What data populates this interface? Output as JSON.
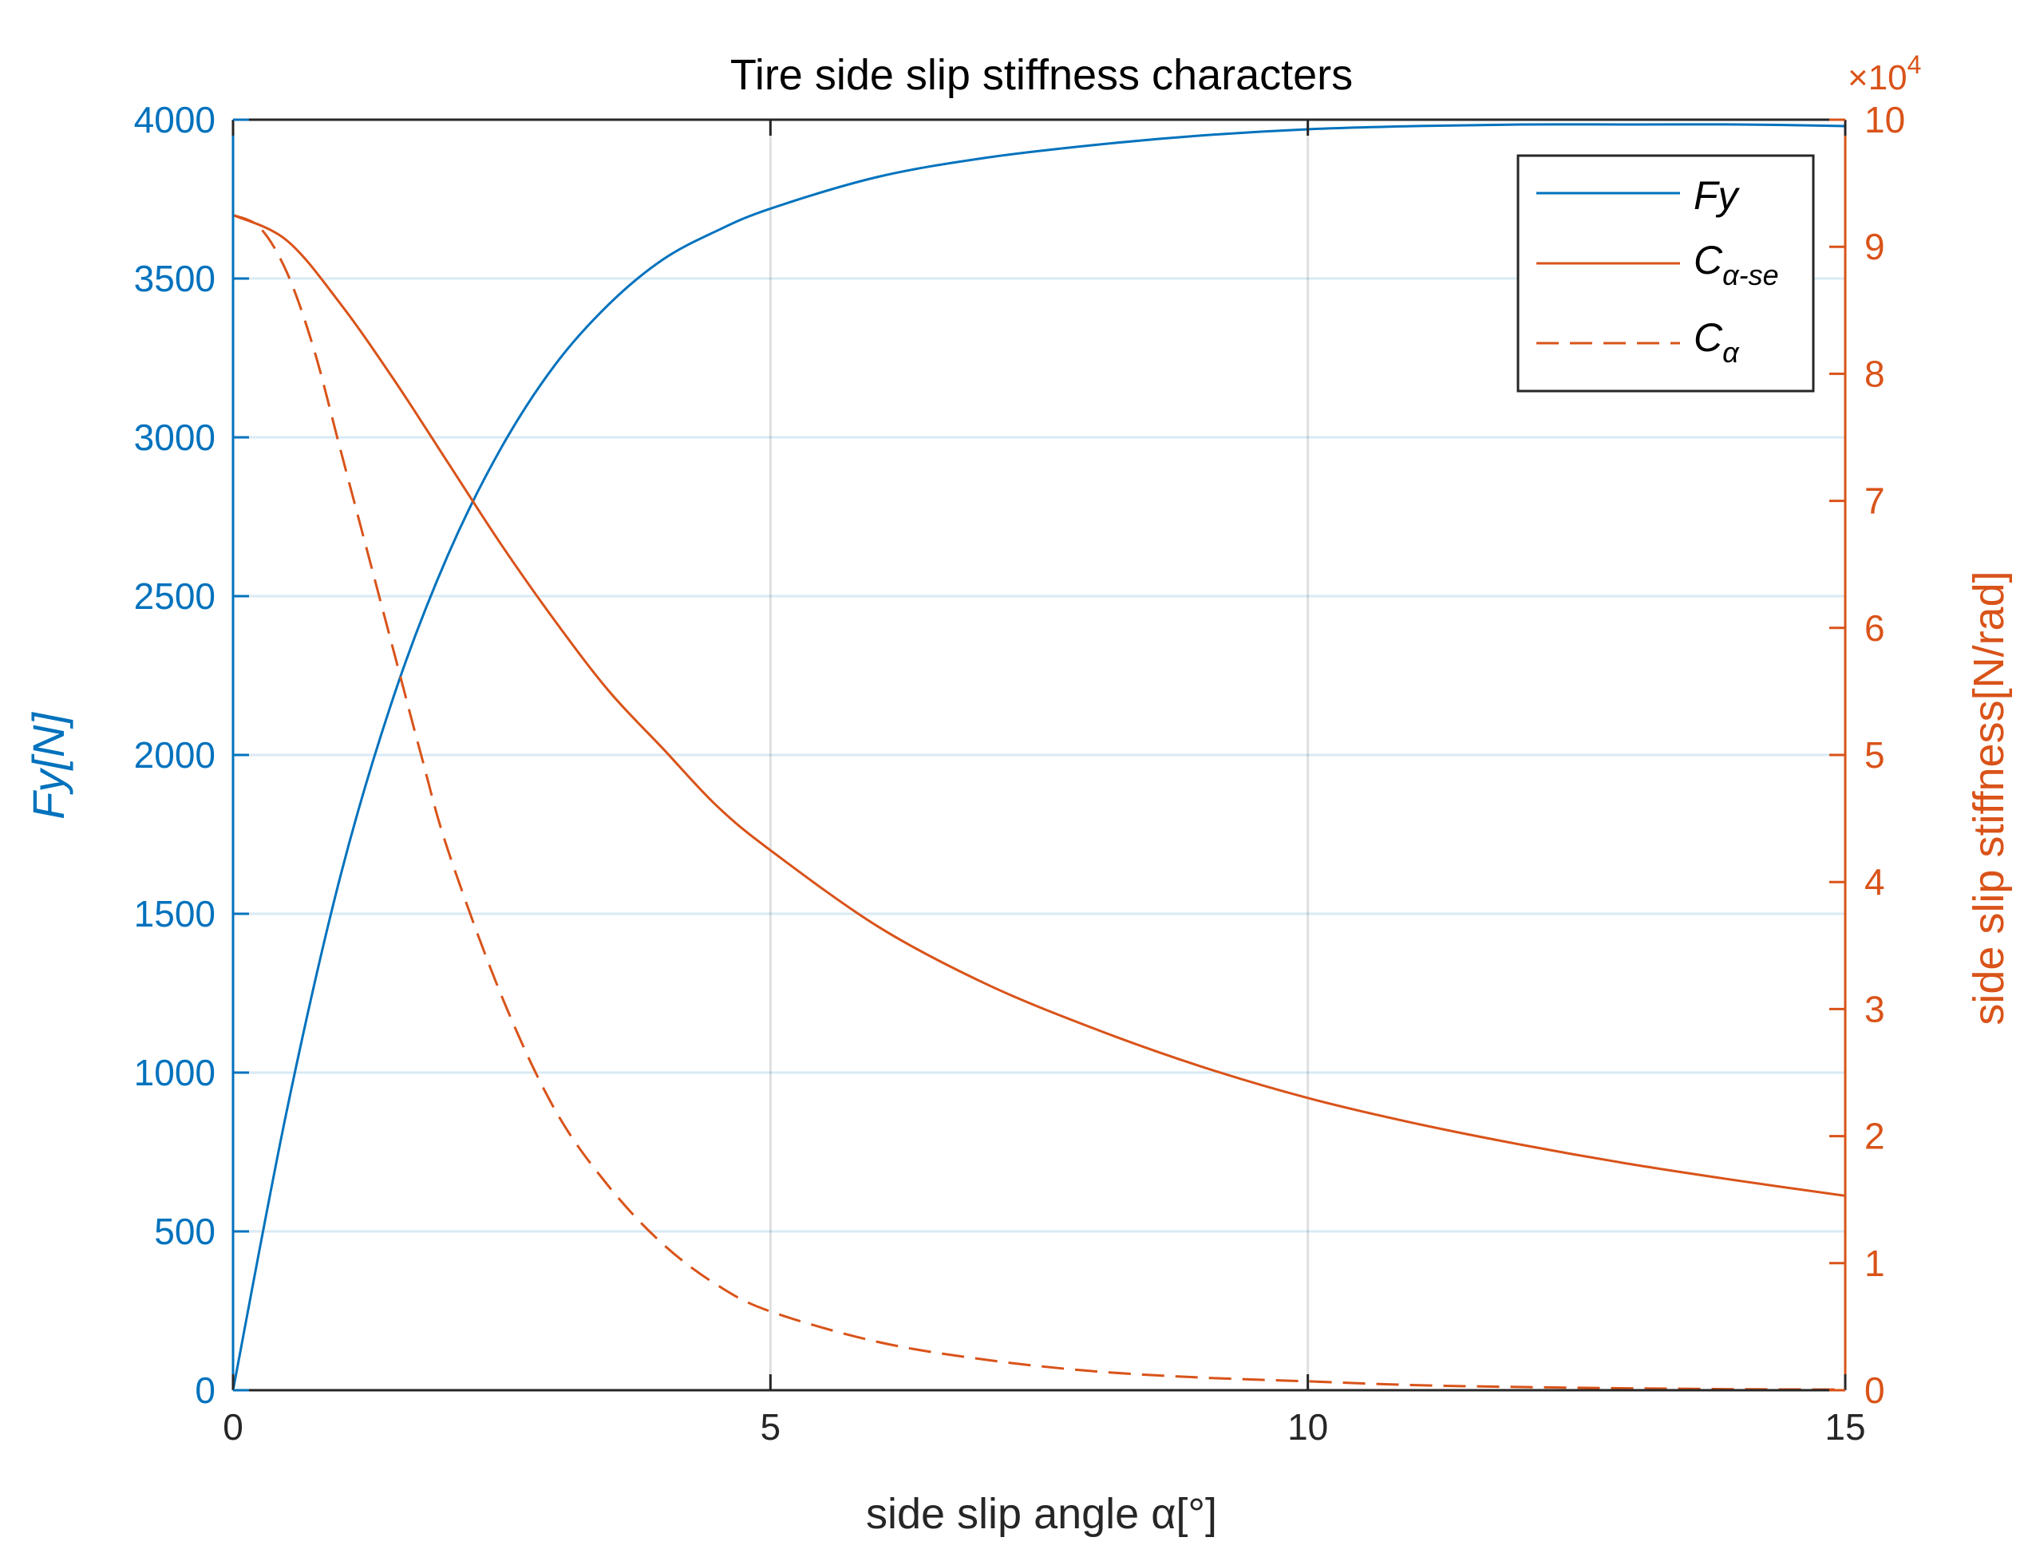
{
  "chart_data": {
    "type": "line",
    "title": "Tire side slip stiffness characters",
    "xlabel": "side slip angle α[°]",
    "ylabel_left": "Fy[N]",
    "ylabel_right": "side slip stiffness[N/rad]",
    "right_exponent_base": "×10",
    "right_exponent_power": "4",
    "xlim": [
      0,
      15
    ],
    "ylim_left": [
      0,
      4000
    ],
    "ylim_right": [
      0,
      100000
    ],
    "x_ticks": [
      "0",
      "5",
      "10",
      "15"
    ],
    "y_left_ticks": [
      "0",
      "500",
      "1000",
      "1500",
      "2000",
      "2500",
      "3000",
      "3500",
      "4000"
    ],
    "y_right_ticks": [
      "0",
      "1",
      "2",
      "3",
      "4",
      "5",
      "6",
      "7",
      "8",
      "9",
      "10"
    ],
    "grid": true,
    "legend_position": "top-right",
    "colors": {
      "left": "#0072BD",
      "right": "#D95319",
      "axis": "#262626"
    },
    "legend": [
      {
        "main": "Fy",
        "sub": ""
      },
      {
        "main": "C",
        "sub": "α-se"
      },
      {
        "main": "C",
        "sub": "α"
      }
    ],
    "series": [
      {
        "name": "Fy",
        "axis": "left",
        "color": "#0072BD",
        "dash": "solid",
        "x": [
          0,
          0.5,
          1,
          1.5,
          2,
          2.5,
          3,
          3.5,
          4,
          4.5,
          5,
          6,
          7,
          8,
          9,
          10,
          11,
          12,
          13,
          14,
          15
        ],
        "y": [
          0,
          880,
          1620,
          2190,
          2630,
          2970,
          3230,
          3420,
          3560,
          3650,
          3720,
          3820,
          3880,
          3920,
          3950,
          3970,
          3980,
          3985,
          3985,
          3985,
          3980
        ]
      },
      {
        "name": "Cα-se",
        "axis": "right",
        "color": "#D95319",
        "dash": "solid",
        "x": [
          0,
          0.5,
          1,
          1.5,
          2,
          2.5,
          3,
          3.5,
          4,
          4.5,
          5,
          6,
          7,
          8,
          9,
          10,
          11,
          12,
          13,
          14,
          15
        ],
        "y": [
          92500,
          90500,
          85500,
          79500,
          73000,
          66500,
          60500,
          55000,
          50500,
          46000,
          42500,
          36500,
          32000,
          28500,
          25500,
          23000,
          21000,
          19300,
          17800,
          16500,
          15300
        ]
      },
      {
        "name": "Cα",
        "axis": "right",
        "color": "#D95319",
        "dash": "dashed",
        "x": [
          0,
          0.25,
          0.5,
          0.75,
          1,
          1.25,
          1.5,
          1.75,
          2,
          2.5,
          3,
          3.5,
          4,
          4.5,
          5,
          6,
          7,
          8,
          9,
          10,
          11,
          12,
          13,
          14,
          15
        ],
        "y": [
          92500,
          91500,
          88000,
          82000,
          74000,
          66000,
          58000,
          50000,
          42500,
          31000,
          22000,
          16000,
          11500,
          8300,
          6200,
          3800,
          2400,
          1500,
          1000,
          700,
          400,
          250,
          150,
          80,
          50
        ]
      }
    ]
  }
}
